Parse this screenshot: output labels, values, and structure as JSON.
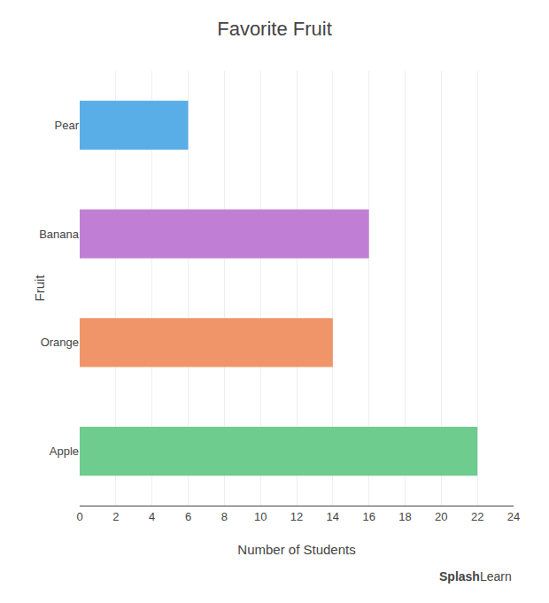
{
  "chart_data": {
    "type": "bar",
    "orientation": "horizontal",
    "title": "Favorite Fruit",
    "xlabel": "Number of Students",
    "ylabel": "Fruit",
    "categories": [
      "Apple",
      "Orange",
      "Banana",
      "Pear"
    ],
    "values": [
      22,
      14,
      16,
      6
    ],
    "colors": [
      "#6dcc8e",
      "#f0956a",
      "#c07fd4",
      "#5aaee8"
    ],
    "xlim": [
      0,
      24
    ],
    "xticks": [
      0,
      2,
      4,
      6,
      8,
      10,
      12,
      14,
      16,
      18,
      20,
      22,
      24
    ],
    "grid": true,
    "annotations": [
      "Splash",
      "Learn"
    ]
  }
}
